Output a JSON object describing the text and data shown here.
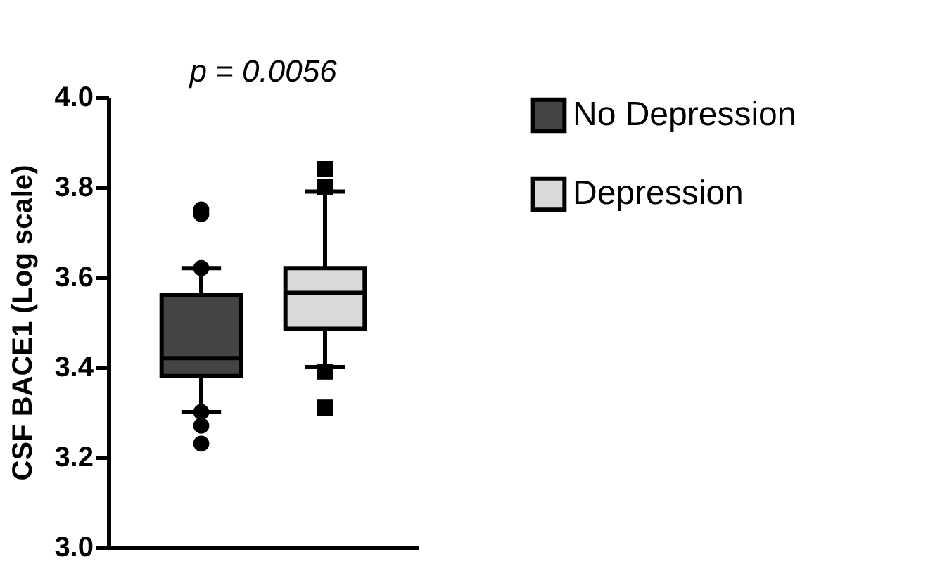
{
  "chart_data": {
    "type": "box",
    "annotations": [
      "p = 0.0056"
    ],
    "ylabel": "CSF BACE1 (Log scale)",
    "categories": [
      null,
      null
    ],
    "series": [
      {
        "name": "No Depression",
        "color": "#444444",
        "marker": "circle",
        "boxes": [
          {
            "low": 3.3,
            "q1": 3.38,
            "median": 3.42,
            "q3": 3.56,
            "high": 3.62,
            "outliers": [
              3.75,
              3.74,
              3.62,
              3.3,
              3.27,
              3.23
            ]
          },
          null
        ]
      },
      {
        "name": "Depression",
        "color": "#d9d9d9",
        "marker": "square",
        "boxes": [
          null,
          {
            "low": 3.4,
            "q1": 3.485,
            "median": 3.565,
            "q3": 3.62,
            "high": 3.79,
            "outliers": [
              3.84,
              3.8,
              3.39,
              3.31
            ]
          }
        ]
      }
    ],
    "ylim": [
      3.0,
      4.0
    ],
    "yticks": [
      {
        "value": 3.0,
        "label": "3.0"
      },
      {
        "value": 3.2,
        "label": "3.2"
      },
      {
        "value": 3.4,
        "label": "3.4"
      },
      {
        "value": 3.6,
        "label": "3.6"
      },
      {
        "value": 3.8,
        "label": "3.8"
      },
      {
        "value": 4.0,
        "label": "4.0"
      }
    ],
    "tick_labels": "y",
    "grid": false,
    "legend": "top right"
  }
}
